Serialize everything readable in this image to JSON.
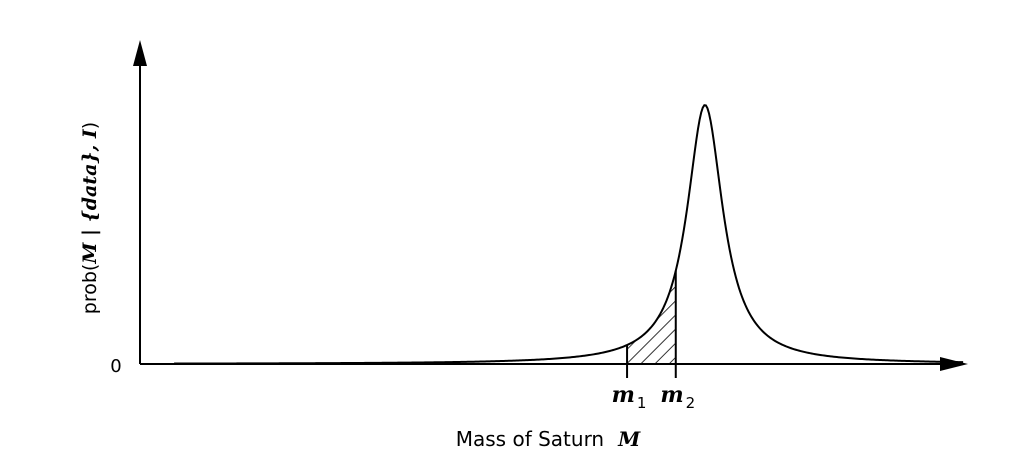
{
  "chart_data": {
    "type": "line",
    "title": "",
    "xlabel": {
      "text": "Mass of Saturn",
      "symbol": "M"
    },
    "ylabel": {
      "prefix": "prob(",
      "main": "M | {data}, I",
      "suffix": ")"
    },
    "y_tick_label": "0",
    "x_markers": [
      {
        "base": "m",
        "sub": "1",
        "value": 0.5
      },
      {
        "base": "m",
        "sub": "2",
        "value": 0.6
      }
    ],
    "curve": {
      "shape": "lorentzian",
      "peak_x": 0.66,
      "half_width": 0.045,
      "peak_y": 1.0
    },
    "shaded_region": {
      "from": 0.5,
      "to": 0.6,
      "fill": "hatched"
    },
    "xlim": [
      -0.5,
      1.2
    ],
    "ylim": [
      0,
      1.0
    ],
    "grid": false,
    "legend": "none",
    "colors": {
      "line": "#000000",
      "background": "#ffffff"
    }
  }
}
